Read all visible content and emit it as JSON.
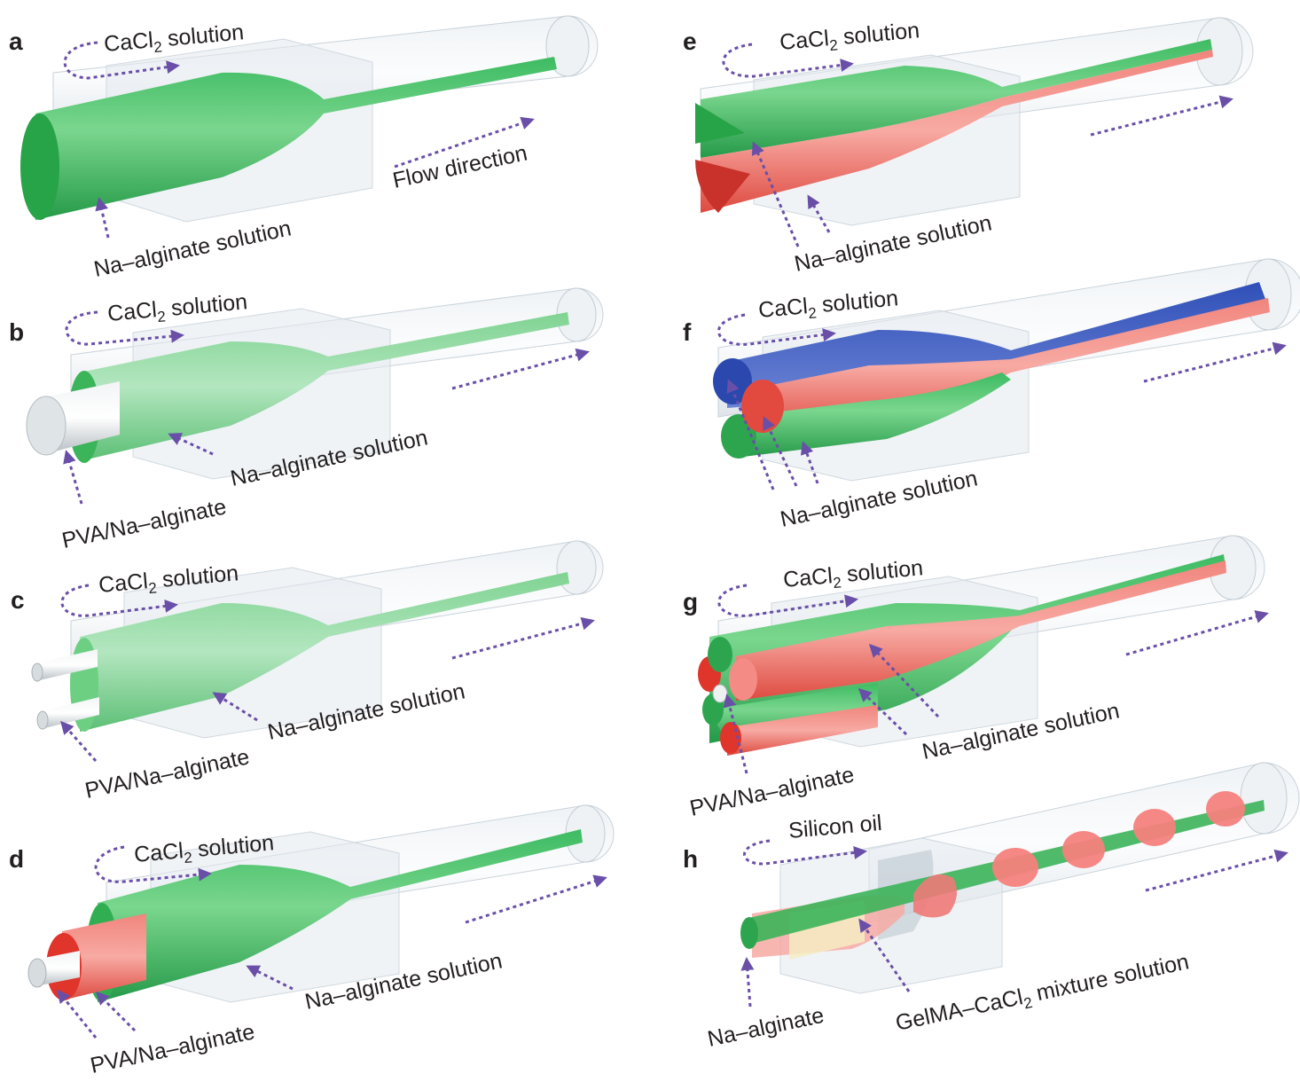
{
  "panels": [
    {
      "id": "a",
      "label": "a",
      "cacl2": "CaCl",
      "cacl2_sub": "2",
      "cacl2_tail": " solution",
      "flow": "Flow direction",
      "na": "Na–alginate solution"
    },
    {
      "id": "b",
      "label": "b",
      "cacl2": "CaCl",
      "cacl2_sub": "2",
      "cacl2_tail": " solution",
      "na": "Na–alginate solution",
      "pva": "PVA/Na–alginate"
    },
    {
      "id": "c",
      "label": "c",
      "cacl2": "CaCl",
      "cacl2_sub": "2",
      "cacl2_tail": " solution",
      "na": "Na–alginate solution",
      "pva": "PVA/Na–alginate"
    },
    {
      "id": "d",
      "label": "d",
      "cacl2": "CaCl",
      "cacl2_sub": "2",
      "cacl2_tail": " solution",
      "na": "Na–alginate solution",
      "pva": "PVA/Na–alginate"
    },
    {
      "id": "e",
      "label": "e",
      "cacl2": "CaCl",
      "cacl2_sub": "2",
      "cacl2_tail": " solution",
      "na": "Na–alginate solution"
    },
    {
      "id": "f",
      "label": "f",
      "cacl2": "CaCl",
      "cacl2_sub": "2",
      "cacl2_tail": " solution",
      "na": "Na–alginate solution"
    },
    {
      "id": "g",
      "label": "g",
      "cacl2": "CaCl",
      "cacl2_sub": "2",
      "cacl2_tail": " solution",
      "na": "Na–alginate solution",
      "pva": "PVA/Na–alginate"
    },
    {
      "id": "h",
      "label": "h",
      "oil": "Silicon oil",
      "na": "Na–alginate",
      "gel": "GelMA–CaCl",
      "gel_sub": "2",
      "gel_tail": " mixture solution"
    }
  ],
  "colors": {
    "green": "#3cb45a",
    "red": "#e5362b",
    "pink": "#f07a78",
    "blue": "#3d5bbf",
    "arrow": "#6a4fa8",
    "glass": "#d8e1e8"
  }
}
